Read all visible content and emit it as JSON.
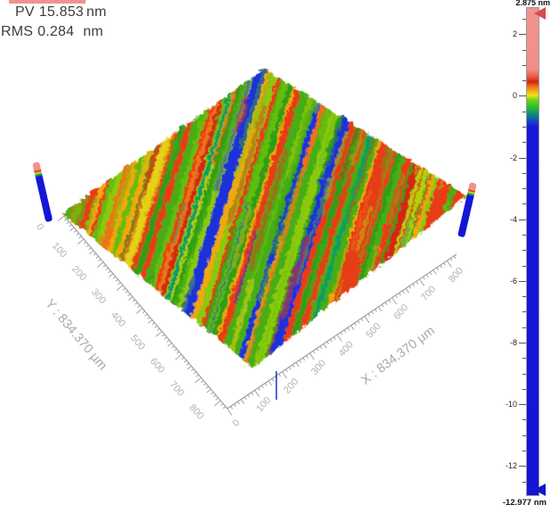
{
  "stats": {
    "pv_label": "PV",
    "pv_value": "15.853",
    "pv_unit": "nm",
    "rms_label": "RMS",
    "rms_value": "0.284",
    "rms_unit": "nm"
  },
  "legend_strip_color": "#f2928e",
  "surface": {
    "x_axis": {
      "label": "X : 834.370 µm",
      "length_um": 834.37,
      "minor_step_um": 12.5,
      "ticks": [
        0,
        100,
        200,
        300,
        400,
        500,
        600,
        700,
        800
      ]
    },
    "y_axis": {
      "label": "Y : 834.370 µm",
      "length_um": 834.37,
      "minor_step_um": 12.5,
      "ticks": [
        0,
        100,
        200,
        300,
        400,
        500,
        600,
        700,
        800
      ]
    },
    "base_color": "#3aa315",
    "texture_palette": [
      {
        "c": "#2f9e17",
        "w": 15
      },
      {
        "c": "#46ad12",
        "w": 14
      },
      {
        "c": "#63bd10",
        "w": 9
      },
      {
        "c": "#8cc90f",
        "w": 7
      },
      {
        "c": "#b5ce10",
        "w": 6
      },
      {
        "c": "#e3d312",
        "w": 7
      },
      {
        "c": "#f2a70f",
        "w": 8
      },
      {
        "c": "#ef7212",
        "w": 7
      },
      {
        "c": "#e73c18",
        "w": 13
      },
      {
        "c": "#d42814",
        "w": 5
      },
      {
        "c": "#1c30d8",
        "w": 5
      },
      {
        "c": "#0f9e60",
        "w": 3
      }
    ]
  },
  "colorbar": {
    "unit": "nm",
    "max": 2.875,
    "min": -12.977,
    "max_label": "2.875 nm",
    "min_label": "-12.977 nm",
    "major_ticks": [
      2,
      0,
      -2,
      -4,
      -6,
      -8,
      -10,
      -12
    ],
    "minor_step": 0.5,
    "top_marker_color": "#d84b4b",
    "bottom_marker_color": "#1414cc",
    "gradient": [
      {
        "p": 0,
        "c": "#f29390"
      },
      {
        "p": 12.6,
        "c": "#f28e88"
      },
      {
        "p": 14.2,
        "c": "#e55840"
      },
      {
        "p": 15.1,
        "c": "#cf2212"
      },
      {
        "p": 16.1,
        "c": "#f07017"
      },
      {
        "p": 17.0,
        "c": "#f3a90f"
      },
      {
        "p": 17.9,
        "c": "#e9e316"
      },
      {
        "p": 18.9,
        "c": "#6fd41a"
      },
      {
        "p": 20.3,
        "c": "#2cbe2c"
      },
      {
        "p": 21.8,
        "c": "#0e8a78"
      },
      {
        "p": 23.3,
        "c": "#1b40c8"
      },
      {
        "p": 24.5,
        "c": "#1717d8"
      },
      {
        "p": 100,
        "c": "#1414d6"
      }
    ]
  },
  "chart_data": {
    "type": "heatmap",
    "subtype": "3d_surface_topography_isometric",
    "title": "",
    "stats": {
      "PV": "15.853 nm",
      "RMS": "0.284 nm"
    },
    "xlabel": "X : 834.370 µm",
    "ylabel": "Y : 834.370 µm",
    "zlabel": "nm",
    "x_range_um": [
      0,
      834.37
    ],
    "y_range_um": [
      0,
      834.37
    ],
    "x_ticks": [
      0,
      100,
      200,
      300,
      400,
      500,
      600,
      700,
      800
    ],
    "y_ticks": [
      0,
      100,
      200,
      300,
      400,
      500,
      600,
      700,
      800
    ],
    "z_range_nm": [
      -12.977,
      2.875
    ],
    "z_colorbar_major_ticks": [
      2,
      0,
      -2,
      -4,
      -6,
      -8,
      -10,
      -12
    ],
    "z_colorbar_minor_step_nm": 0.5,
    "colorbar_position": "right",
    "grid": false,
    "surface_description": "Square 834.37 µm x 834.37 µm field shown as isometric diamond; fine diagonal polishing striations tilted ~17 deg from vertical; heights mostly near 0 nm (green/yellow/orange/red bands) with sparse narrow blue grooves reaching about -13 nm; blue z-reference posts with salmon tops at left and right corners."
  }
}
